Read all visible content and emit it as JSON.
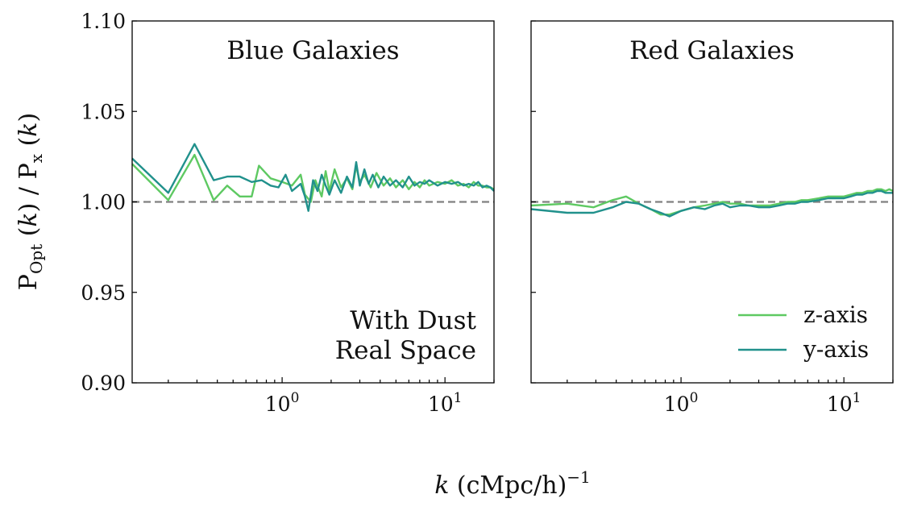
{
  "chart_data": [
    {
      "type": "line",
      "title": "Blue Galaxies",
      "annotation": [
        "With Dust",
        "Real Space"
      ],
      "xscale": "log",
      "xlim": [
        0.12,
        20
      ],
      "ylim": [
        0.9,
        1.1
      ],
      "xticks": [
        "10^0",
        "10^1"
      ],
      "yticks": [
        "0.90",
        "0.95",
        "1.00",
        "1.05",
        "1.10"
      ],
      "reference_line": 1.0,
      "series": [
        {
          "name": "z-axis",
          "color": "#5ec962",
          "x": [
            0.12,
            0.2,
            0.29,
            0.38,
            0.46,
            0.55,
            0.65,
            0.72,
            0.85,
            1.0,
            1.15,
            1.3,
            1.38,
            1.5,
            1.6,
            1.75,
            1.85,
            1.95,
            2.1,
            2.3,
            2.5,
            2.7,
            2.85,
            3.0,
            3.2,
            3.5,
            3.8,
            4.2,
            4.6,
            5.0,
            5.5,
            6.0,
            6.5,
            7.0,
            7.5,
            8.0,
            9.0,
            10.0,
            11.0,
            12.0,
            13.0,
            14.0,
            15.0,
            16.0,
            17.0,
            18.0,
            19.0,
            20.0
          ],
          "values": [
            1.021,
            1.001,
            1.026,
            1.001,
            1.009,
            1.003,
            1.003,
            1.02,
            1.013,
            1.011,
            1.009,
            1.015,
            1.004,
            1.0,
            1.012,
            1.003,
            1.017,
            1.006,
            1.018,
            1.008,
            1.013,
            1.007,
            1.02,
            1.011,
            1.015,
            1.008,
            1.016,
            1.009,
            1.013,
            1.008,
            1.012,
            1.007,
            1.011,
            1.008,
            1.012,
            1.009,
            1.011,
            1.01,
            1.012,
            1.009,
            1.01,
            1.008,
            1.011,
            1.009,
            1.009,
            1.008,
            1.008,
            1.007
          ]
        },
        {
          "name": "y-axis",
          "color": "#21918c",
          "x": [
            0.12,
            0.2,
            0.29,
            0.38,
            0.46,
            0.55,
            0.65,
            0.75,
            0.85,
            0.95,
            1.05,
            1.15,
            1.3,
            1.38,
            1.45,
            1.55,
            1.65,
            1.75,
            1.85,
            1.95,
            2.1,
            2.3,
            2.5,
            2.7,
            2.85,
            3.0,
            3.2,
            3.4,
            3.6,
            3.9,
            4.2,
            4.6,
            5.0,
            5.5,
            6.0,
            6.5,
            7.0,
            7.5,
            8.0,
            9.0,
            10.0,
            11.0,
            12.0,
            13.0,
            14.0,
            15.0,
            16.0,
            17.0,
            18.0,
            19.0,
            20.0
          ],
          "values": [
            1.024,
            1.005,
            1.032,
            1.012,
            1.014,
            1.014,
            1.011,
            1.012,
            1.009,
            1.008,
            1.015,
            1.006,
            1.01,
            1.003,
            0.995,
            1.012,
            1.006,
            1.015,
            1.009,
            1.004,
            1.012,
            1.005,
            1.014,
            1.008,
            1.022,
            1.009,
            1.018,
            1.01,
            1.015,
            1.008,
            1.014,
            1.009,
            1.012,
            1.008,
            1.014,
            1.009,
            1.011,
            1.01,
            1.012,
            1.009,
            1.011,
            1.01,
            1.011,
            1.009,
            1.01,
            1.009,
            1.011,
            1.008,
            1.009,
            1.008,
            1.006
          ]
        }
      ]
    },
    {
      "type": "line",
      "title": "Red Galaxies",
      "xscale": "log",
      "xlim": [
        0.12,
        20
      ],
      "ylim": [
        0.9,
        1.1
      ],
      "xticks": [
        "10^0",
        "10^1"
      ],
      "reference_line": 1.0,
      "legend_position": "lower-right",
      "series": [
        {
          "name": "z-axis",
          "color": "#5ec962",
          "x": [
            0.12,
            0.2,
            0.29,
            0.38,
            0.46,
            0.55,
            0.65,
            0.75,
            0.85,
            1.0,
            1.2,
            1.4,
            1.6,
            1.8,
            2.0,
            2.3,
            2.6,
            3.0,
            3.5,
            4.0,
            4.5,
            5.0,
            5.5,
            6.0,
            7.0,
            8.0,
            9.0,
            10.0,
            11.0,
            12.0,
            13.0,
            14.0,
            15.0,
            16.0,
            17.0,
            18.0,
            19.0,
            20.0
          ],
          "values": [
            0.998,
            0.999,
            0.997,
            1.001,
            1.003,
            0.999,
            0.996,
            0.993,
            0.993,
            0.995,
            0.997,
            0.998,
            0.999,
            1.0,
            0.999,
            0.999,
            0.998,
            0.998,
            0.998,
            0.999,
            1.0,
            1.0,
            1.001,
            1.001,
            1.002,
            1.003,
            1.003,
            1.003,
            1.004,
            1.005,
            1.005,
            1.006,
            1.006,
            1.007,
            1.007,
            1.006,
            1.007,
            1.006
          ]
        },
        {
          "name": "y-axis",
          "color": "#21918c",
          "x": [
            0.12,
            0.2,
            0.29,
            0.38,
            0.46,
            0.55,
            0.65,
            0.75,
            0.85,
            1.0,
            1.2,
            1.4,
            1.6,
            1.8,
            2.0,
            2.3,
            2.6,
            3.0,
            3.5,
            4.0,
            4.5,
            5.0,
            5.5,
            6.0,
            7.0,
            8.0,
            9.0,
            10.0,
            11.0,
            12.0,
            13.0,
            14.0,
            15.0,
            16.0,
            17.0,
            18.0,
            19.0,
            20.0
          ],
          "values": [
            0.996,
            0.994,
            0.994,
            0.997,
            1.0,
            0.999,
            0.996,
            0.994,
            0.992,
            0.995,
            0.997,
            0.996,
            0.998,
            0.999,
            0.997,
            0.998,
            0.998,
            0.997,
            0.997,
            0.998,
            0.999,
            0.999,
            1.0,
            1.0,
            1.001,
            1.002,
            1.002,
            1.002,
            1.003,
            1.004,
            1.004,
            1.005,
            1.005,
            1.006,
            1.006,
            1.005,
            1.005,
            1.005
          ]
        }
      ]
    }
  ]
}
